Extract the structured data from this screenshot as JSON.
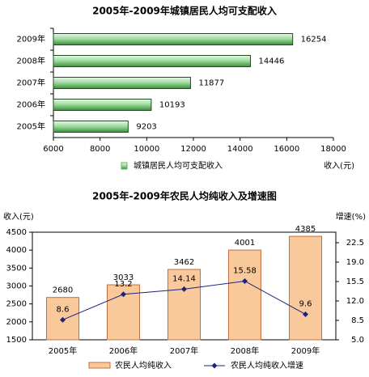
{
  "chart_data": [
    {
      "type": "bar",
      "orientation": "horizontal",
      "title": "2005年-2009年城镇居民人均可支配收入",
      "categories": [
        "2009年",
        "2008年",
        "2007年",
        "2006年",
        "2005年"
      ],
      "series": [
        {
          "name": "城镇居民人均可支配收入",
          "color": "#5cb85c",
          "values": [
            16254,
            14446,
            11877,
            10193,
            9203
          ]
        }
      ],
      "xlabel": "收入(元)",
      "xlim": [
        6000,
        18000
      ],
      "xticks": [
        6000,
        8000,
        10000,
        12000,
        14000,
        16000,
        18000
      ]
    },
    {
      "type": "combo",
      "title": "2005年-2009年农民人均纯收入及增速图",
      "categories": [
        "2005年",
        "2006年",
        "2007年",
        "2008年",
        "2009年"
      ],
      "series": [
        {
          "name": "农民人均纯收入",
          "type": "bar",
          "color": "#f9c89b",
          "values": [
            2680,
            3033,
            3462,
            4001,
            4385
          ]
        },
        {
          "name": "农民人均纯收入增速",
          "type": "line",
          "axis": "y2",
          "color": "#1a237e",
          "values": [
            8.6,
            13.2,
            14.14,
            15.58,
            9.6
          ]
        }
      ],
      "ylabel": "收入(元)",
      "y2label": "增速(%)",
      "ylim": [
        1500,
        4500
      ],
      "yticks": [
        1500,
        2000,
        2500,
        3000,
        3500,
        4000,
        4500
      ],
      "y2lim": [
        5,
        24.4
      ],
      "y2ticks": [
        {
          "value": 5,
          "label": "5.0"
        },
        {
          "value": 8.5,
          "label": "8.5"
        },
        {
          "value": 12,
          "label": "12.0"
        },
        {
          "value": 15.5,
          "label": "15.5"
        },
        {
          "value": 19,
          "label": "19.0"
        },
        {
          "value": 22.5,
          "label": "22.5"
        }
      ]
    }
  ]
}
